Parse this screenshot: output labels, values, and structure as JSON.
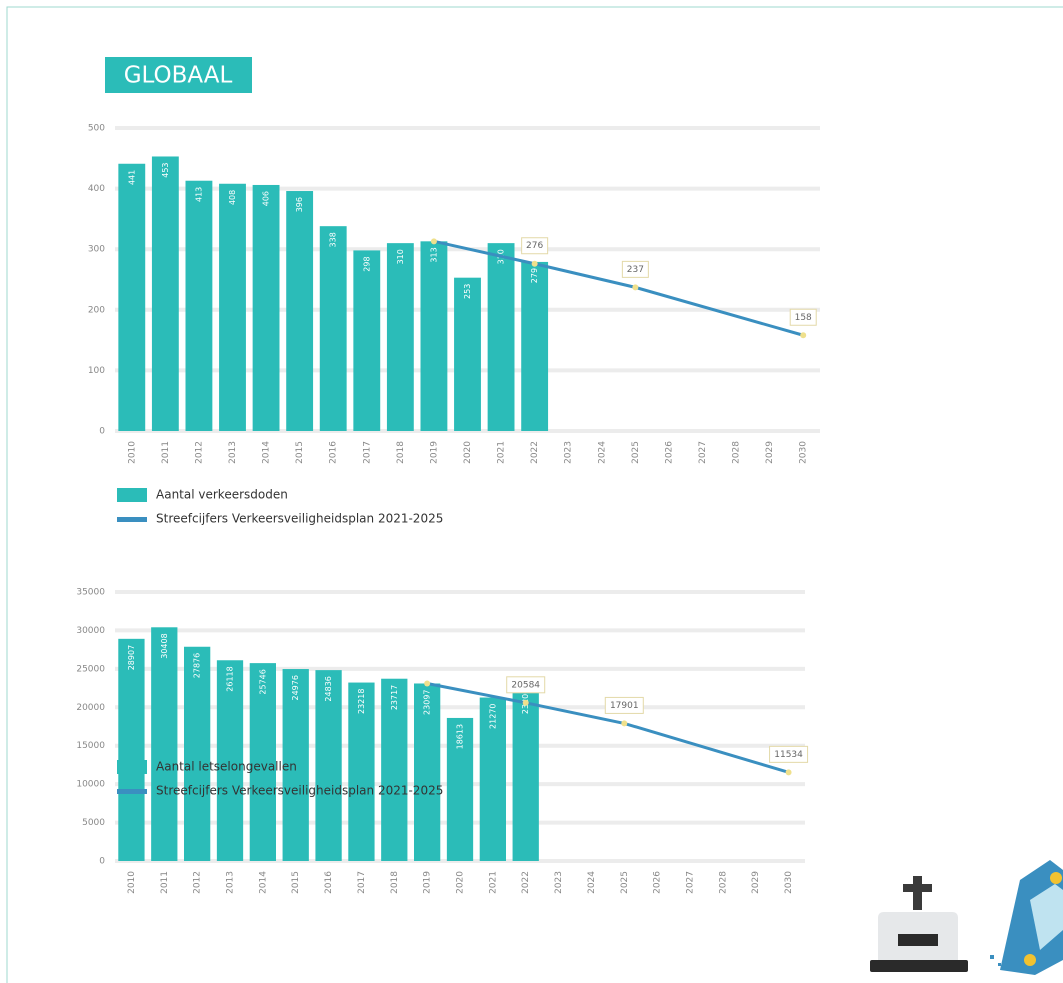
{
  "heading": "GLOBAAL",
  "chart_data": [
    {
      "type": "bar",
      "categories": [
        "2010",
        "2011",
        "2012",
        "2013",
        "2014",
        "2015",
        "2016",
        "2017",
        "2018",
        "2019",
        "2020",
        "2021",
        "2022",
        "2023",
        "2024",
        "2025",
        "2026",
        "2027",
        "2028",
        "2029",
        "2030"
      ],
      "series": [
        {
          "name": "Aantal verkeersdoden",
          "type": "bar",
          "color": "#2bbcb8",
          "values": [
            441,
            453,
            413,
            408,
            406,
            396,
            338,
            298,
            310,
            313,
            253,
            310,
            279,
            null,
            null,
            null,
            null,
            null,
            null,
            null,
            null
          ]
        },
        {
          "name": "Streefcijfers Verkeersveiligheidsplan 2021-2025",
          "type": "line",
          "color": "#3a8fc0",
          "x": [
            "2019",
            "2022",
            "2025",
            "2030"
          ],
          "values": [
            313,
            276,
            237,
            158
          ],
          "value_labels": [
            null,
            "276",
            "237",
            "158"
          ]
        }
      ],
      "ylim": [
        0,
        500
      ],
      "yticks": [
        0,
        100,
        200,
        300,
        400,
        500
      ],
      "grid": true
    },
    {
      "type": "bar",
      "categories": [
        "2010",
        "2011",
        "2012",
        "2013",
        "2014",
        "2015",
        "2016",
        "2017",
        "2018",
        "2019",
        "2020",
        "2021",
        "2022",
        "2023",
        "2024",
        "2025",
        "2026",
        "2027",
        "2028",
        "2029",
        "2030"
      ],
      "series": [
        {
          "name": "Aantal letselongevallen",
          "type": "bar",
          "color": "#2bbcb8",
          "values": [
            28907,
            30408,
            27876,
            26118,
            25746,
            24976,
            24836,
            23218,
            23717,
            23097,
            18613,
            21270,
            23206,
            null,
            null,
            null,
            null,
            null,
            null,
            null,
            null
          ]
        },
        {
          "name": "Streefcijfers Verkeersveiligheidsplan 2021-2025",
          "type": "line",
          "color": "#3a8fc0",
          "x": [
            "2019",
            "2022",
            "2025",
            "2030"
          ],
          "values": [
            23097,
            20584,
            17901,
            11534
          ],
          "value_labels": [
            null,
            "20584",
            "17901",
            "11534"
          ]
        }
      ],
      "ylim": [
        0,
        35000
      ],
      "yticks": [
        0,
        5000,
        10000,
        15000,
        20000,
        25000,
        30000,
        35000
      ],
      "grid": true
    }
  ]
}
